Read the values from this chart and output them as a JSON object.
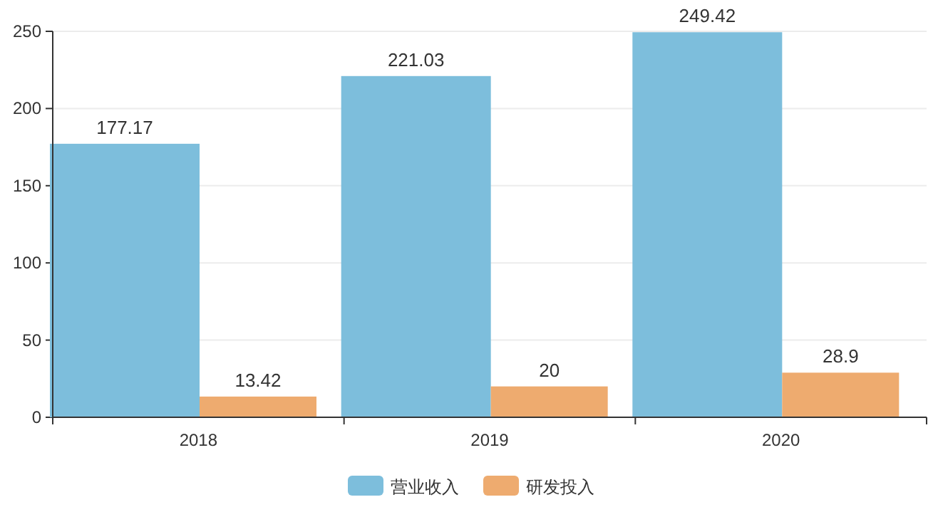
{
  "chart_data": {
    "type": "bar",
    "categories": [
      "2018",
      "2019",
      "2020"
    ],
    "series": [
      {
        "name": "营业收入",
        "color": "#7dbedc",
        "values": [
          177.17,
          221.03,
          249.42
        ]
      },
      {
        "name": "研发投入",
        "color": "#eeab6f",
        "values": [
          13.42,
          20,
          28.9
        ]
      }
    ],
    "ylim": [
      0,
      250
    ],
    "yticks": [
      0,
      50,
      100,
      150,
      200,
      250
    ],
    "grid": "y",
    "legend": "bottom",
    "data_labels": true
  }
}
